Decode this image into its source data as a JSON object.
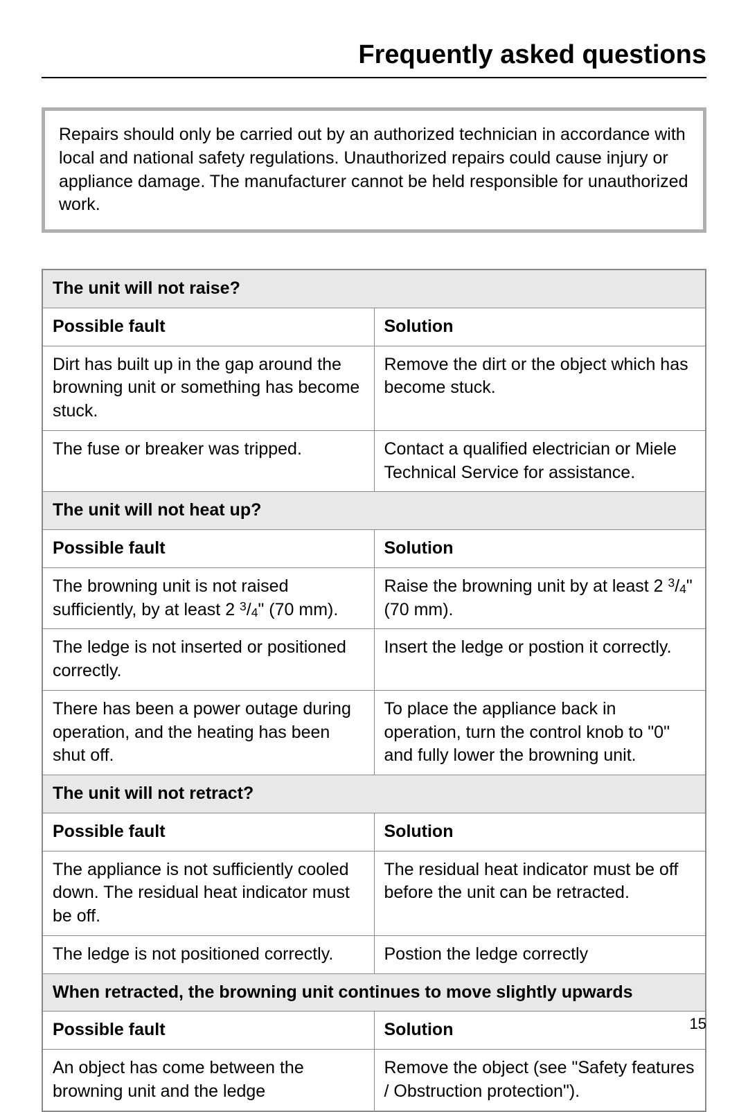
{
  "page": {
    "title": "Frequently asked questions",
    "notice": "Repairs should only be carried out by an authorized technician in accordance with local and national safety regulations. Unauthorized repairs could cause injury or appliance damage. The manufacturer cannot be held responsible for unauthorized work.",
    "pageNumber": "15"
  },
  "sections": [
    {
      "question": "The unit will not raise?",
      "faultHeader": "Possible fault",
      "solutionHeader": "Solution",
      "rows": [
        {
          "fault": "Dirt has built up in the gap around the browning unit or something has become stuck.",
          "solution": "Remove the dirt or the object which has become stuck."
        },
        {
          "fault": "The fuse or breaker was tripped.",
          "solution": "Contact a qualified electrician or Miele Technical Service for assistance."
        }
      ]
    },
    {
      "question": "The unit will not heat up?",
      "faultHeader": "Possible fault",
      "solutionHeader": "Solution",
      "rows": [
        {
          "fault": "The browning unit is not raised sufficiently, by at least 2 3/4\" (70 mm).",
          "solution": "Raise the browning unit by at least 2 3/4\" (70 mm)."
        },
        {
          "fault": "The ledge is not  inserted or positioned correctly.",
          "solution": "Insert the ledge or postion it correctly."
        },
        {
          "fault": "There has been a power outage during operation, and the heating has been shut off.",
          "solution": "To place the appliance back in operation, turn the control knob to \"0\" and fully lower the browning unit."
        }
      ]
    },
    {
      "question": "The unit will not retract?",
      "faultHeader": "Possible fault",
      "solutionHeader": "Solution",
      "rows": [
        {
          "fault": "The appliance is not sufficiently cooled down. The residual heat indicator must be off.",
          "solution": "The residual heat indicator must be off before the unit can be retracted."
        },
        {
          "fault": "The ledge is not positioned correctly.",
          "solution": "Postion the ledge correctly"
        }
      ]
    },
    {
      "question": "When retracted, the browning unit continues to move slightly upwards",
      "faultHeader": "Possible fault",
      "solutionHeader": "Solution",
      "rows": [
        {
          "fault": "An object has come between the browning unit and the ledge",
          "solution": "Remove the object (see \"Safety features / Obstruction protection\")."
        }
      ]
    }
  ],
  "colors": {
    "background": "#ffffff",
    "text": "#000000",
    "sectionBg": "#e8e8e8",
    "border": "#888888",
    "noticeBorder": "#b0b0b0"
  }
}
